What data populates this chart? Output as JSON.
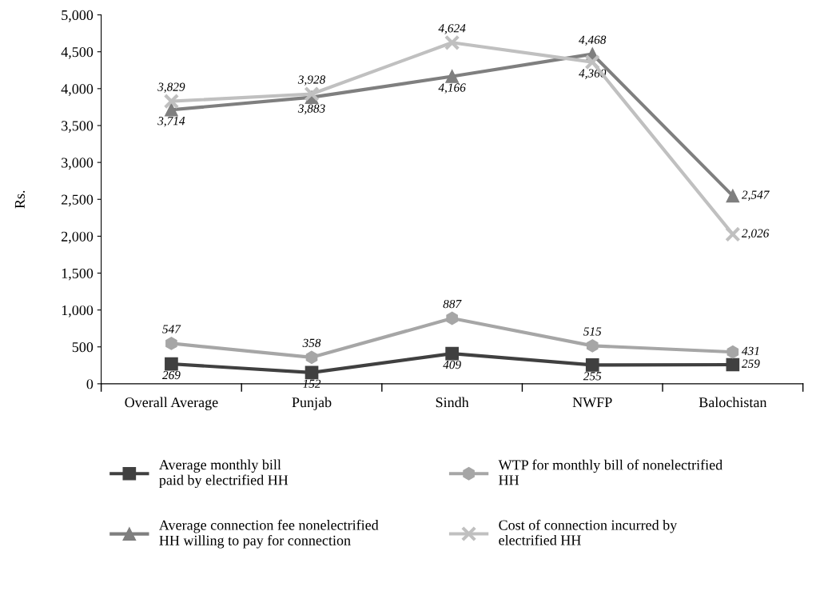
{
  "chart_data": {
    "type": "line",
    "ylabel": "Rs.",
    "categories": [
      "Overall Average",
      "Punjab",
      "Sindh",
      "NWFP",
      "Balochistan"
    ],
    "series": [
      {
        "name": "Average monthly bill\npaid by electrified HH",
        "color": "#404040",
        "marker": "square",
        "values": [
          269,
          152,
          409,
          255,
          259
        ],
        "value_labels": [
          "269",
          "152",
          "409",
          "255",
          "259"
        ]
      },
      {
        "name": "WTP for monthly bill of nonelectrified\nHH",
        "color": "#a6a6a6",
        "marker": "circle",
        "values": [
          547,
          358,
          887,
          515,
          431
        ],
        "value_labels": [
          "547",
          "358",
          "887",
          "515",
          "431"
        ]
      },
      {
        "name": "Average connection fee nonelectrified\nHH willing to pay for connection",
        "color": "#7f7f7f",
        "marker": "triangle",
        "values": [
          3714,
          3883,
          4166,
          4468,
          2547
        ],
        "value_labels": [
          "3,714",
          "3,883",
          "4,166",
          "4,468",
          "2,547"
        ]
      },
      {
        "name": "Cost of connection incurred by\nelectrified HH",
        "color": "#c0c0c0",
        "marker": "cross",
        "values": [
          3829,
          3928,
          4624,
          4360,
          2026
        ],
        "value_labels": [
          "3,829",
          "3,928",
          "4,624",
          "4,360",
          "2,026"
        ]
      }
    ],
    "ylim": [
      0,
      5000
    ],
    "yticks": [
      0,
      {
        "value": 500,
        "label": "500"
      },
      {
        "value": 1000,
        "label": "1,000"
      },
      {
        "value": 1500,
        "label": "1,500"
      },
      {
        "value": 2000,
        "label": "2,000"
      },
      {
        "value": 2500,
        "label": "2,500"
      },
      {
        "value": 3000,
        "label": "3,000"
      },
      {
        "value": 3500,
        "label": "3,500"
      },
      {
        "value": 4000,
        "label": "4,000"
      },
      {
        "value": 4500,
        "label": "4,500"
      },
      {
        "value": 5000,
        "label": "5,000"
      }
    ],
    "grid": false,
    "legend": "bottom",
    "line_style": "solid"
  }
}
